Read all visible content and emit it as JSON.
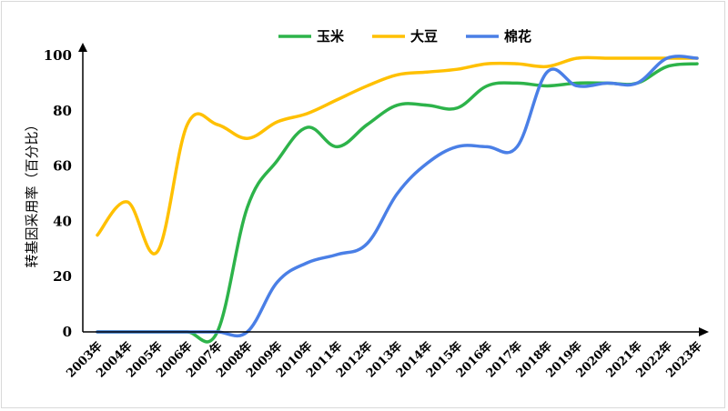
{
  "chart_data": {
    "type": "line",
    "title": "",
    "xlabel": "",
    "ylabel": "转基因采用率（百分比）",
    "ylim": [
      0,
      100
    ],
    "yticks": [
      0,
      20,
      40,
      60,
      80,
      100
    ],
    "grid": false,
    "legend_position": "top",
    "categories": [
      "2003年",
      "2004年",
      "2005年",
      "2006年",
      "2007年",
      "2008年",
      "2009年",
      "2010年",
      "2011年",
      "2012年",
      "2013年",
      "2014年",
      "2015年",
      "2016年",
      "2017年",
      "2018年",
      "2019年",
      "2020年",
      "2021年",
      "2022年",
      "2023年"
    ],
    "series": [
      {
        "name": "玉米",
        "color": "#2db34a",
        "values": [
          0,
          0,
          0,
          0,
          0,
          45,
          62,
          74,
          67,
          75,
          82,
          82,
          81,
          89,
          90,
          89,
          90,
          90,
          90,
          96,
          97
        ]
      },
      {
        "name": "大豆",
        "color": "#ffc000",
        "values": [
          35,
          47,
          29,
          75,
          75,
          70,
          76,
          79,
          84,
          89,
          93,
          94,
          95,
          97,
          97,
          96,
          99,
          99,
          99,
          99,
          99
        ]
      },
      {
        "name": "棉花",
        "color": "#4a7fe6",
        "values": [
          0,
          0,
          0,
          0,
          0,
          0,
          18,
          25,
          28,
          32,
          50,
          61,
          67,
          67,
          67,
          94,
          89,
          90,
          90,
          99,
          99
        ]
      }
    ]
  }
}
